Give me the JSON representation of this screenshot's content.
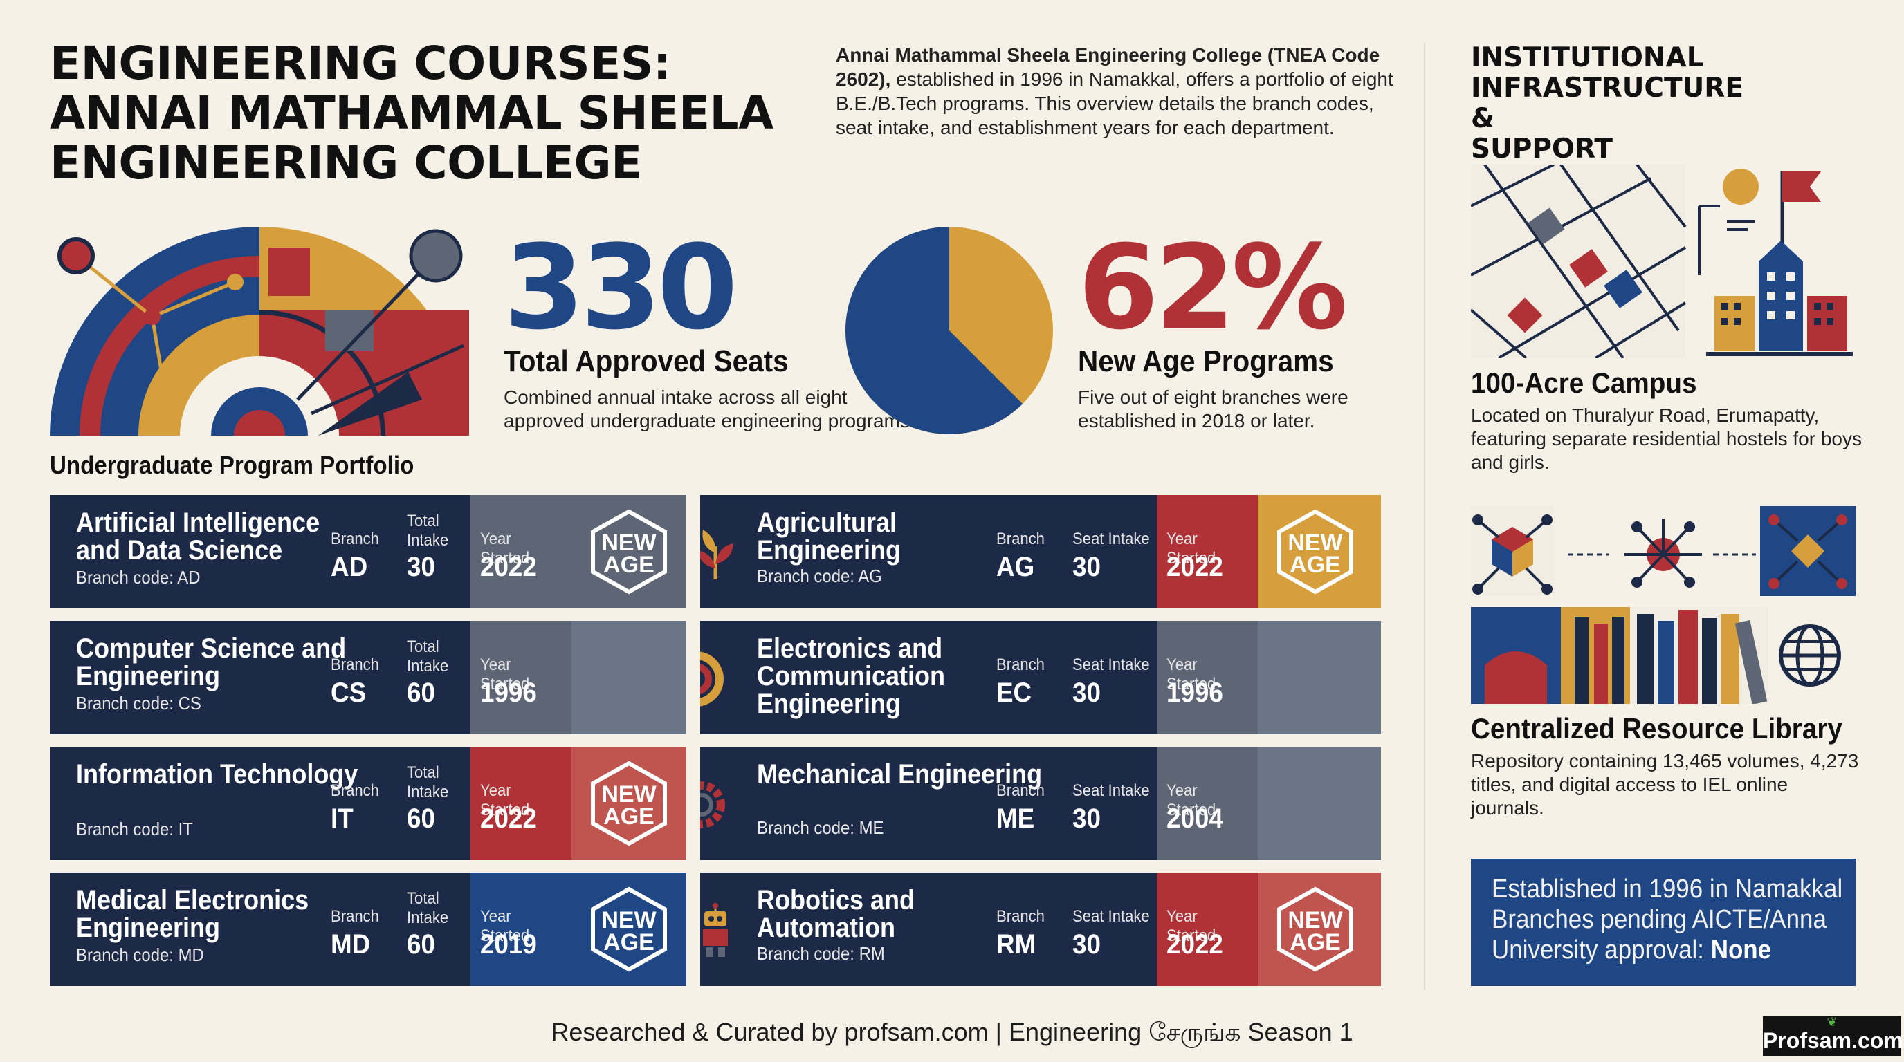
{
  "header": {
    "title_lines": [
      "ENGINEERING COURSES:",
      "ANNAI MATHAMMAL SHEELA",
      "ENGINEERING COLLEGE"
    ],
    "intro_bold": "Annai Mathammal Sheela Engineering College (TNEA Code 2602),",
    "intro_rest": " established in 1996 in Namakkal, offers a portfolio of eight B.E./B.Tech programs. This overview details the branch codes, seat intake, and establishment years for each department."
  },
  "stats": {
    "seats": {
      "number": "330",
      "title": "Total Approved Seats",
      "desc": "Combined annual intake across all eight approved undergraduate engineering programs."
    },
    "new_age": {
      "number": "62%",
      "title": "New Age Programs",
      "desc": "Five out of eight branches were established in 2018 or later.",
      "fraction": 0.625
    }
  },
  "portfolio_label": "Undergraduate Program Portfolio",
  "programs_left": [
    {
      "name": "Artificial Intelligence and Data Science",
      "code_text": "Branch code: AD",
      "branch_label": "Branch",
      "branch": "AD",
      "intake_label": "Total Intake",
      "intake": "30",
      "year_label": "Year Started",
      "year": "2022",
      "badge": "NEW AGE",
      "year_color": "#5e6675",
      "badge_color": "#5e6675"
    },
    {
      "name": "Computer Science and Engineering",
      "code_text": "Branch code: CS",
      "branch_label": "Branch",
      "branch": "CS",
      "intake_label": "Total Intake",
      "intake": "60",
      "year_label": "Year Started",
      "year": "1996",
      "badge": "",
      "year_color": "#5e6675",
      "badge_color": "#6a7588"
    },
    {
      "name": "Information Technology",
      "code_text": "Branch code: IT",
      "branch_label": "Branch",
      "branch": "IT",
      "intake_label": "Total Intake",
      "intake": "60",
      "year_label": "Year Started",
      "year": "2022",
      "badge": "NEW AGE",
      "year_color": "#b13236",
      "badge_color": "#c0544f"
    },
    {
      "name": "Medical Electronics Engineering",
      "code_text": "Branch code: MD",
      "branch_label": "Branch",
      "branch": "MD",
      "intake_label": "Total Intake",
      "intake": "60",
      "year_label": "Year Started",
      "year": "2019",
      "badge": "NEW AGE",
      "year_color": "#1f4786",
      "badge_color": "#1f4786"
    }
  ],
  "programs_right": [
    {
      "name": "Agricultural Engineering",
      "code_text": "Branch code: AG",
      "branch_label": "Branch",
      "branch": "AG",
      "intake_label": "Seat Intake",
      "intake": "30",
      "year_label": "Year Started",
      "year": "2022",
      "badge": "NEW AGE",
      "year_color": "#b13236",
      "badge_color": "#d69f3c",
      "icon": "leaf-icon"
    },
    {
      "name": "Electronics and Communication Engineering",
      "code_text": "",
      "branch_label": "Branch",
      "branch": "EC",
      "intake_label": "Seat Intake",
      "intake": "30",
      "year_label": "Year Started",
      "year": "1996",
      "badge": "",
      "year_color": "#5e6675",
      "badge_color": "#6a7588",
      "icon": "signal-icon"
    },
    {
      "name": "Mechanical Engineering",
      "code_text": "Branch code: ME",
      "branch_label": "Branch",
      "branch": "ME",
      "intake_label": "Seat Intake",
      "intake": "30",
      "year_label": "Year Started",
      "year": "2004",
      "badge": "",
      "year_color": "#5e6675",
      "badge_color": "#6a7588",
      "icon": "gear-icon"
    },
    {
      "name": "Robotics and Automation",
      "code_text": "Branch code: RM",
      "branch_label": "Branch",
      "branch": "RM",
      "intake_label": "Seat Intake",
      "intake": "30",
      "year_label": "Year Started",
      "year": "2022",
      "badge": "NEW AGE",
      "year_color": "#b13236",
      "badge_color": "#c0544f",
      "icon": "robot-icon"
    }
  ],
  "sidebar": {
    "title_lines": [
      "INSTITUTIONAL",
      "INFRASTRUCTURE &",
      "SUPPORT"
    ],
    "campus_title": "100-Acre Campus",
    "campus_desc": "Located on Thuralyur Road, Erumapatty, featuring separate residential hostels for boys and girls.",
    "library_title": "Centralized Resource Library",
    "library_desc": "Repository containing 13,465 volumes, 4,273 titles, and digital access to IEL online journals.",
    "est_line1": "Established in 1996 in Namakkal",
    "est_line2": "Branches pending AICTE/Anna",
    "est_line3_prefix": "University approval: ",
    "est_line3_value": "None"
  },
  "footer": {
    "text": "Researched & Curated by profsam.com | Engineering சேருங்க Season 1",
    "logo": "Profsam.com"
  },
  "colors": {
    "navy": "#1d2a47",
    "blue": "#1f4786",
    "red": "#b13236",
    "gold": "#d69f3c",
    "slate": "#5e6675",
    "cream": "#f6f1e6"
  }
}
